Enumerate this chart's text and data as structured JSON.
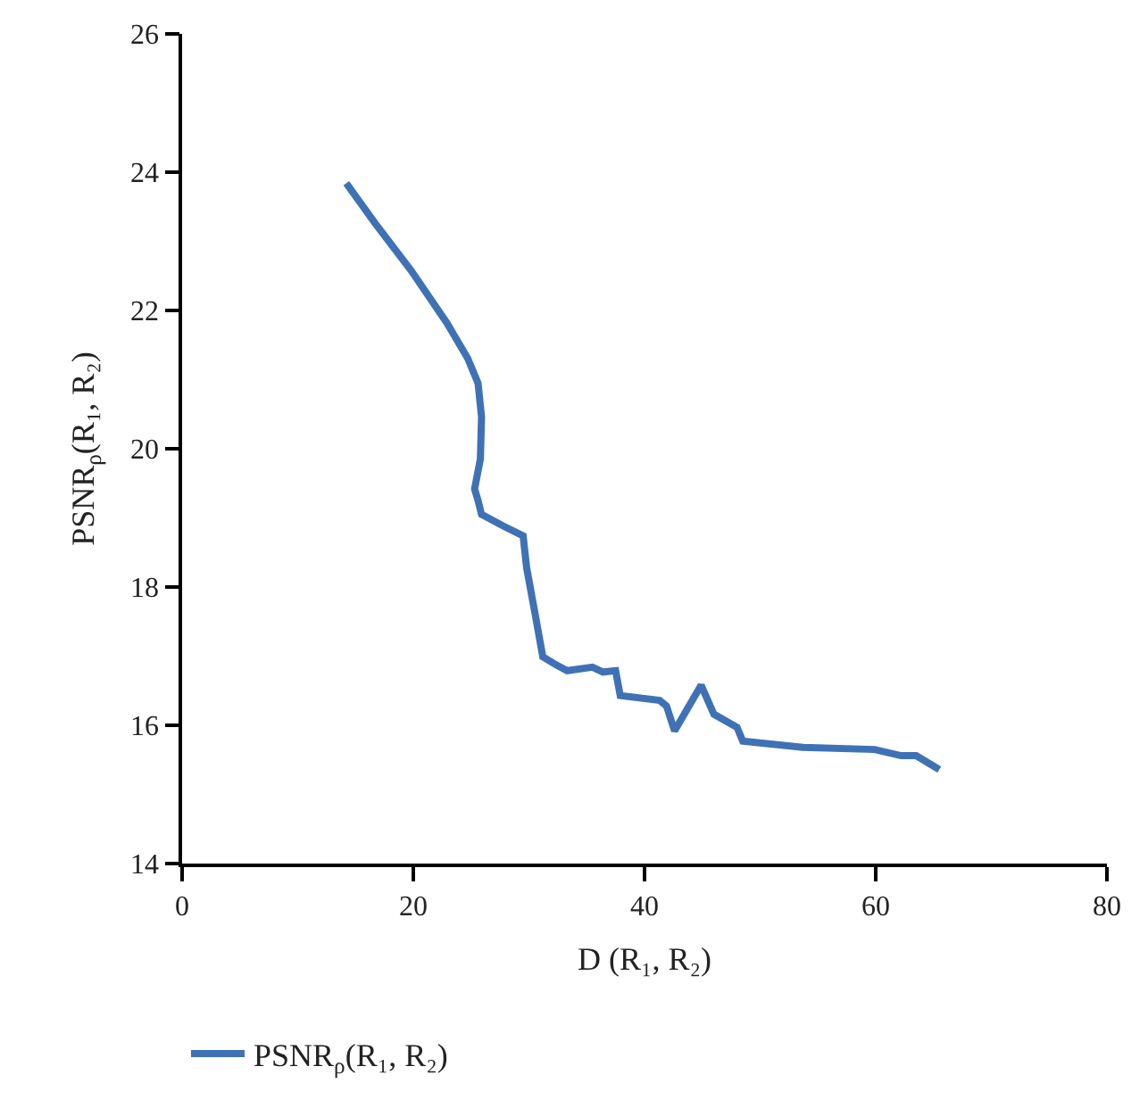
{
  "chart_data": {
    "type": "line",
    "xlabel": "D (R₁, R₂)",
    "ylabel": "PSNR$_{ρ}$(R₁, R₂)",
    "xlim": [
      0,
      80
    ],
    "xticks": [
      0,
      20,
      40,
      60,
      80
    ],
    "ylim": [
      14,
      26
    ],
    "yticks": [
      14,
      16,
      18,
      20,
      22,
      24,
      26
    ],
    "legend": "bottom left",
    "marker": "none",
    "line_style": "solid",
    "series": [
      {
        "name": "PSNR$_{ρ}$(R₁, R₂)",
        "color": "#3f72b5",
        "x": [
          14.2,
          16.7,
          19.8,
          22.9,
          24.7,
          25.6,
          25.9,
          25.8,
          25.3,
          25.6,
          25.9,
          27.8,
          29.5,
          29.8,
          30.6,
          31.2,
          32.4,
          33.3,
          35.5,
          36.4,
          37.5,
          37.9,
          41.3,
          41.9,
          42.6,
          44.9,
          46.0,
          48.0,
          48.5,
          53.7,
          59.9,
          62.2,
          63.5,
          65.0,
          65.5
        ],
        "values": [
          23.84,
          23.26,
          22.58,
          21.82,
          21.31,
          20.95,
          20.46,
          19.85,
          19.42,
          19.25,
          19.05,
          18.88,
          18.74,
          18.28,
          17.55,
          16.99,
          16.87,
          16.79,
          16.84,
          16.77,
          16.79,
          16.43,
          16.36,
          16.28,
          15.92,
          16.58,
          16.16,
          15.97,
          15.77,
          15.68,
          15.65,
          15.56,
          15.56,
          15.41,
          15.36
        ]
      }
    ]
  }
}
